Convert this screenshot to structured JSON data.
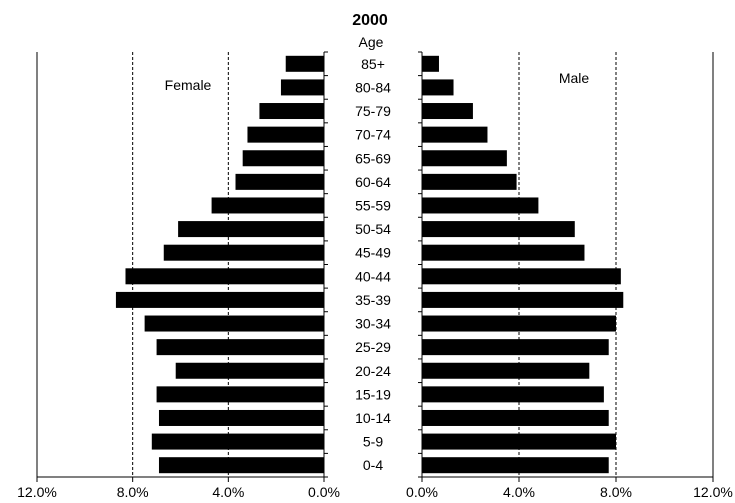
{
  "chart_data": {
    "type": "bar",
    "title": "2000",
    "category_header": "Age",
    "categories": [
      "85+",
      "80-84",
      "75-79",
      "70-74",
      "65-69",
      "60-64",
      "55-59",
      "50-54",
      "45-49",
      "40-44",
      "35-39",
      "30-34",
      "25-29",
      "20-24",
      "15-19",
      "10-14",
      "5-9",
      "0-4"
    ],
    "series": [
      {
        "name": "Female",
        "side": "left",
        "values": [
          1.6,
          1.8,
          2.7,
          3.2,
          3.4,
          3.7,
          4.7,
          6.1,
          6.7,
          8.3,
          8.7,
          7.5,
          7.0,
          6.2,
          7.0,
          6.9,
          7.2,
          6.9
        ]
      },
      {
        "name": "Male",
        "side": "right",
        "values": [
          0.7,
          1.3,
          2.1,
          2.7,
          3.5,
          3.9,
          4.8,
          6.3,
          6.7,
          8.2,
          8.3,
          8.0,
          7.7,
          6.9,
          7.5,
          7.7,
          8.0,
          7.7
        ]
      }
    ],
    "xlim": [
      0,
      12
    ],
    "left_ticks": [
      "12.0%",
      "8.0%",
      "4.0%",
      "0.0%"
    ],
    "right_ticks": [
      "0.0%",
      "4.0%",
      "8.0%",
      "12.0%"
    ],
    "gridlines": "dashed vertical at 4% and 8%",
    "bar_color": "#000000"
  }
}
